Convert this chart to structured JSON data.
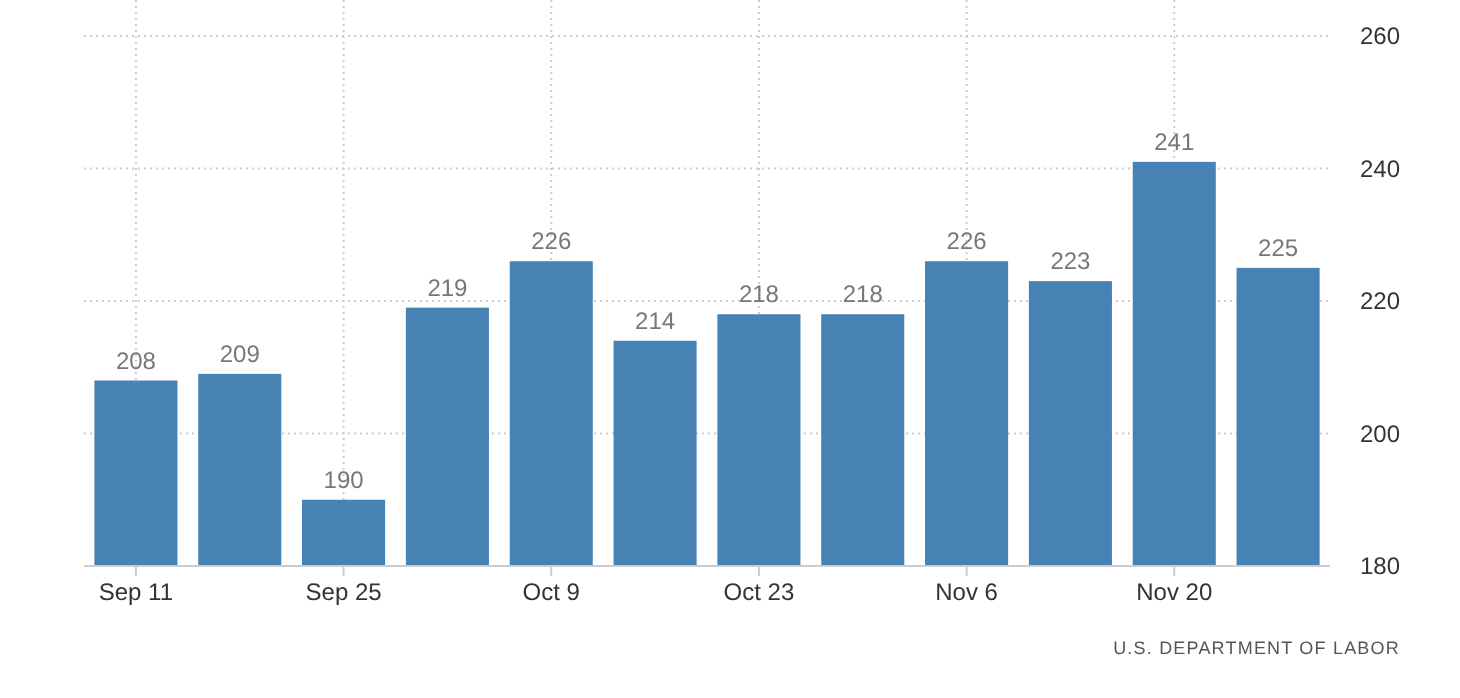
{
  "chart_data": {
    "type": "bar",
    "categories": [
      "Sep 11",
      null,
      "Sep 25",
      null,
      "Oct 9",
      null,
      "Oct 23",
      null,
      "Nov 6",
      null,
      "Nov 20",
      null
    ],
    "values": [
      208,
      209,
      190,
      219,
      226,
      214,
      218,
      218,
      226,
      223,
      241,
      225
    ],
    "color": "#4682b4",
    "ylim": [
      180,
      260
    ],
    "yticks": [
      180,
      200,
      220,
      240,
      260
    ],
    "grid": true,
    "data_labels": true,
    "annotations": [
      "U.S. DEPARTMENT OF LABOR"
    ]
  }
}
